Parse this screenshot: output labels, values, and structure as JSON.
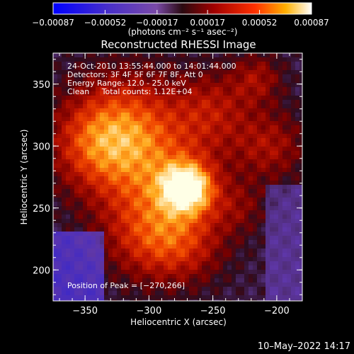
{
  "chart_data": {
    "type": "heatmap",
    "title": "Reconstructed RHESSI Image",
    "xlabel": "Heliocentric X (arcsec)",
    "ylabel": "Heliocentric Y (arcsec)",
    "xlim": [
      -375,
      -180
    ],
    "ylim": [
      175,
      375
    ],
    "xticks": [
      -350,
      -300,
      -250,
      -200
    ],
    "yticks": [
      200,
      250,
      300,
      350
    ],
    "xtick_labels": [
      "−350",
      "−300",
      "−250",
      "−200"
    ],
    "ytick_labels": [
      "200",
      "250",
      "300",
      "350"
    ],
    "colorbar": {
      "min": -0.00087,
      "max": 0.00087,
      "ticks": [
        -0.00087,
        -0.00052,
        -0.00017,
        0.00017,
        0.00052,
        0.00087
      ],
      "tick_labels": [
        "−0.00087",
        "−0.00052",
        "−0.00017",
        "0.00017",
        "0.00052",
        "0.00087"
      ],
      "unit_label": "(photons cm⁻² s⁻¹ asec⁻²)"
    },
    "peak": [
      -270,
      266
    ],
    "annotations": {
      "time": "24-Oct-2010 13:55:44.000 to 14:01:44.000",
      "detectors": "Detectors: 3F 4F 5F 6F 7F 8F, Att 0",
      "energy": "Energy Range: 12.0 - 25.0 keV",
      "clean": "Clean     Total counts: 1.12E+04",
      "peak_label": "Position of Peak = [−270,266]"
    }
  },
  "footer": {
    "timestamp": "10–May–2022 14:17"
  }
}
